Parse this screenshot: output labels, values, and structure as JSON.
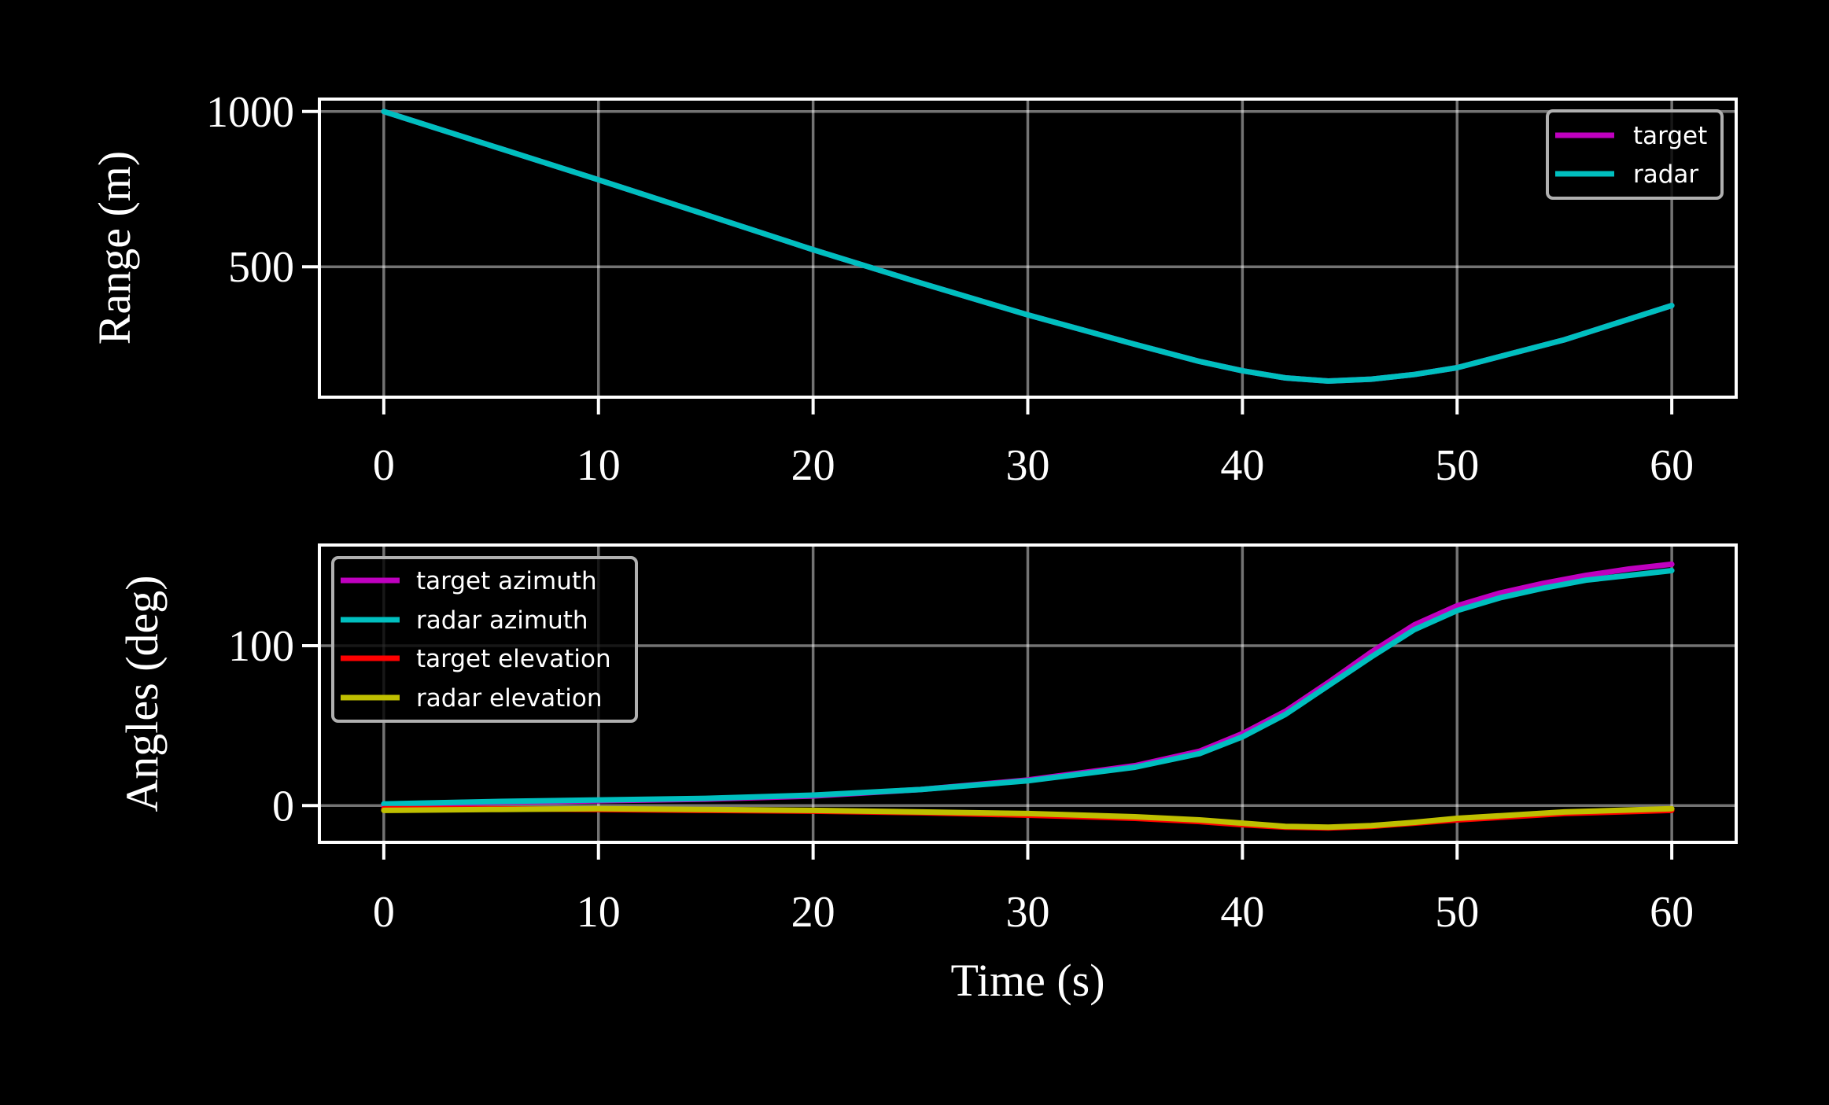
{
  "chart_data": [
    {
      "type": "line",
      "ylabel": "Range (m)",
      "xlabel": "",
      "xlim": [
        -3,
        63
      ],
      "ylim": [
        80,
        1040
      ],
      "xticks": [
        0,
        10,
        20,
        30,
        40,
        50,
        60
      ],
      "xtick_labels": [
        "0",
        "10",
        "20",
        "30",
        "40",
        "50",
        "60"
      ],
      "yticks": [
        500,
        1000
      ],
      "ytick_labels": [
        "500",
        "1000"
      ],
      "grid": true,
      "legend_position": "upper right",
      "series": [
        {
          "name": "target",
          "color": "#bf00bf",
          "x": [
            0,
            5,
            10,
            15,
            20,
            25,
            30,
            35,
            38,
            40,
            42,
            44,
            46,
            48,
            50,
            55,
            60
          ],
          "y": [
            1000,
            890,
            780,
            668,
            555,
            448,
            345,
            250,
            195,
            165,
            142,
            132,
            138,
            153,
            175,
            265,
            375
          ]
        },
        {
          "name": "radar",
          "color": "#00bfbf",
          "x": [
            0,
            5,
            10,
            15,
            20,
            25,
            30,
            35,
            38,
            40,
            42,
            44,
            46,
            48,
            50,
            55,
            60
          ],
          "y": [
            1000,
            890,
            780,
            668,
            555,
            448,
            345,
            250,
            195,
            165,
            142,
            132,
            138,
            153,
            175,
            265,
            375
          ]
        }
      ]
    },
    {
      "type": "line",
      "ylabel": "Angles (deg)",
      "xlabel": "Time (s)",
      "xlim": [
        -3,
        63
      ],
      "ylim": [
        -23,
        163
      ],
      "xticks": [
        0,
        10,
        20,
        30,
        40,
        50,
        60
      ],
      "xtick_labels": [
        "0",
        "10",
        "20",
        "30",
        "40",
        "50",
        "60"
      ],
      "yticks": [
        0,
        100
      ],
      "ytick_labels": [
        "0",
        "100"
      ],
      "grid": true,
      "legend_position": "upper left",
      "series": [
        {
          "name": "target azimuth",
          "color": "#bf00bf",
          "x": [
            0,
            5,
            10,
            15,
            20,
            25,
            30,
            35,
            38,
            40,
            42,
            44,
            46,
            48,
            50,
            52,
            54,
            56,
            58,
            60
          ],
          "y": [
            0,
            2,
            3,
            4,
            6,
            10,
            16,
            25,
            34,
            45,
            59,
            77,
            96,
            113,
            125,
            133,
            139,
            144,
            148,
            151
          ]
        },
        {
          "name": "radar azimuth",
          "color": "#00bfbf",
          "x": [
            0,
            5,
            10,
            15,
            20,
            25,
            30,
            35,
            38,
            40,
            42,
            44,
            46,
            48,
            50,
            52,
            54,
            56,
            58,
            60
          ],
          "y": [
            1,
            2.5,
            3.5,
            4.5,
            6.5,
            10,
            15.5,
            24,
            32.5,
            43,
            57,
            75,
            93,
            110,
            122,
            130,
            136,
            141,
            144,
            147
          ]
        },
        {
          "name": "target elevation",
          "color": "#ff0000",
          "x": [
            0,
            5,
            10,
            15,
            20,
            25,
            30,
            35,
            38,
            40,
            42,
            44,
            46,
            48,
            50,
            55,
            60
          ],
          "y": [
            -2,
            -2,
            -2.5,
            -3,
            -3.5,
            -4.5,
            -6,
            -8,
            -10,
            -12,
            -13.5,
            -14,
            -13,
            -11,
            -9,
            -5,
            -3
          ]
        },
        {
          "name": "radar elevation",
          "color": "#bfbf00",
          "x": [
            0,
            5,
            10,
            15,
            20,
            25,
            30,
            35,
            38,
            40,
            42,
            44,
            46,
            48,
            50,
            55,
            60
          ],
          "y": [
            -3,
            -2.5,
            -2,
            -2.5,
            -3,
            -4,
            -5,
            -7,
            -9,
            -11,
            -13,
            -13.5,
            -12.5,
            -10.5,
            -8,
            -4,
            -2
          ]
        }
      ]
    }
  ]
}
